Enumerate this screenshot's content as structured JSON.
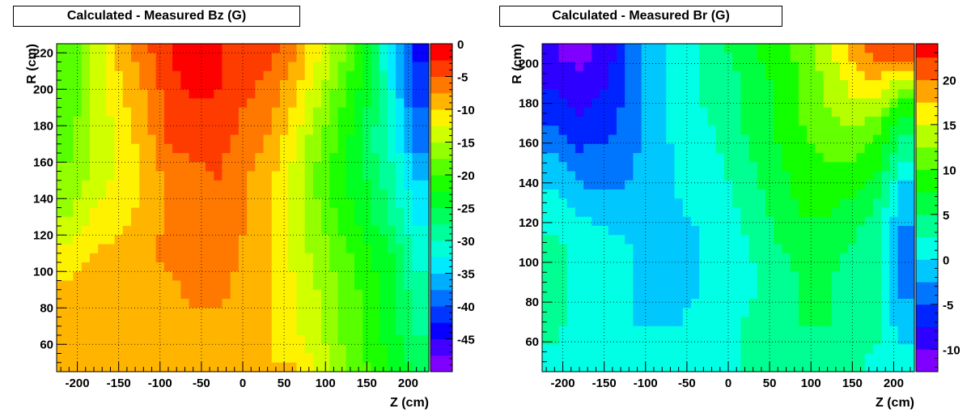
{
  "charts": [
    {
      "title": "Calculated - Measured Bz (G)",
      "xlabel": "Z (cm)",
      "ylabel": "R (cm)",
      "xticks": [
        "-200",
        "-150",
        "-100",
        "-50",
        "0",
        "50",
        "100",
        "150",
        "200"
      ],
      "yticks": [
        "60",
        "80",
        "100",
        "120",
        "140",
        "160",
        "180",
        "200",
        "220"
      ],
      "zticks": [
        "0",
        "-5",
        "-10",
        "-15",
        "-20",
        "-25",
        "-30",
        "-35",
        "-40",
        "-45"
      ]
    },
    {
      "title": "Calculated - Measured Br (G)",
      "xlabel": "Z (cm)",
      "ylabel": "R (cm)",
      "xticks": [
        "-200",
        "-150",
        "-100",
        "-50",
        "0",
        "50",
        "100",
        "150",
        "200"
      ],
      "yticks": [
        "60",
        "80",
        "100",
        "120",
        "140",
        "160",
        "180",
        "200"
      ],
      "zticks": [
        "20",
        "15",
        "10",
        "5",
        "0",
        "-5",
        "-10"
      ]
    }
  ],
  "chart_data": [
    {
      "type": "heatmap",
      "title": "Calculated - Measured Bz (G)",
      "xlabel": "Z (cm)",
      "ylabel": "R (cm)",
      "xlim": [
        -225,
        225
      ],
      "ylim": [
        45,
        225
      ],
      "zlim": [
        -50,
        0
      ],
      "z_step": 2.5,
      "colorbar_ticks": [
        0,
        -5,
        -10,
        -15,
        -20,
        -25,
        -30,
        -35,
        -40,
        -45
      ],
      "x": [
        -210,
        -180,
        -150,
        -120,
        -90,
        -60,
        -30,
        0,
        30,
        60,
        90,
        120,
        150,
        180,
        210
      ],
      "y": [
        50,
        70,
        90,
        110,
        130,
        150,
        170,
        190,
        210,
        220
      ],
      "z": [
        [
          -9,
          -8,
          -8,
          -8,
          -8,
          -8,
          -8,
          -8,
          -10,
          -10,
          -13,
          -17,
          -20,
          -23,
          -26
        ],
        [
          -9,
          -8,
          -8,
          -8,
          -8,
          -8,
          -8,
          -9,
          -10,
          -12,
          -15,
          -18,
          -21,
          -24,
          -28
        ],
        [
          -9,
          -8,
          -8,
          -8,
          -8,
          -7,
          -7,
          -8,
          -10,
          -12,
          -15,
          -18,
          -21,
          -24,
          -29
        ],
        [
          -12,
          -10,
          -9,
          -8,
          -7,
          -6,
          -6,
          -8,
          -10,
          -13,
          -16,
          -19,
          -22,
          -25,
          -31
        ],
        [
          -15,
          -12,
          -11,
          -9,
          -7,
          -6,
          -6,
          -7,
          -9,
          -13,
          -17,
          -21,
          -24,
          -28,
          -33
        ],
        [
          -17,
          -14,
          -12,
          -10,
          -7,
          -6,
          -5,
          -7,
          -9,
          -13,
          -18,
          -22,
          -25,
          -29,
          -35
        ],
        [
          -18,
          -15,
          -12,
          -9,
          -5,
          -4,
          -4,
          -6,
          -8,
          -12,
          -17,
          -21,
          -26,
          -31,
          -38
        ],
        [
          -19,
          -15,
          -11,
          -8,
          -5,
          -3,
          -3,
          -5,
          -6,
          -10,
          -15,
          -20,
          -25,
          -32,
          -40
        ],
        [
          -20,
          -15,
          -10,
          -7,
          -3,
          -1,
          -2,
          -4,
          -5,
          -8,
          -13,
          -18,
          -24,
          -33,
          -42
        ],
        [
          -20,
          -15,
          -9,
          -6,
          -3,
          -1,
          -2,
          -4,
          -4,
          -7,
          -12,
          -17,
          -23,
          -34,
          -43
        ]
      ]
    },
    {
      "type": "heatmap",
      "title": "Calculated - Measured Br (G)",
      "xlabel": "Z (cm)",
      "ylabel": "R (cm)",
      "xlim": [
        -225,
        225
      ],
      "ylim": [
        45,
        210
      ],
      "zlim": [
        -12.5,
        24
      ],
      "z_step": 2.5,
      "colorbar_ticks": [
        20,
        15,
        10,
        5,
        0,
        -5,
        -10
      ],
      "x": [
        -210,
        -180,
        -150,
        -120,
        -90,
        -60,
        -30,
        0,
        30,
        60,
        90,
        120,
        150,
        180,
        210
      ],
      "y": [
        50,
        70,
        90,
        110,
        130,
        150,
        170,
        190,
        205
      ],
      "z": [
        [
          2,
          1,
          0,
          0,
          0,
          0,
          1,
          2,
          3,
          4,
          4,
          4,
          3,
          2,
          1
        ],
        [
          3,
          2,
          1,
          0,
          0,
          0,
          1,
          2,
          3,
          4,
          5,
          5,
          4,
          3,
          -2
        ],
        [
          3,
          2,
          1,
          0,
          -1,
          -1,
          0,
          1,
          2,
          4,
          5,
          5,
          4,
          3,
          -3
        ],
        [
          3,
          2,
          1,
          0,
          -1,
          -1,
          0,
          1,
          3,
          5,
          6,
          6,
          5,
          3,
          -3
        ],
        [
          1,
          -1,
          -2,
          -2,
          -1,
          0,
          1,
          2,
          4,
          6,
          8,
          8,
          7,
          5,
          -2
        ],
        [
          -2,
          -4,
          -4,
          -3,
          -1,
          0,
          1,
          3,
          5,
          7,
          9,
          10,
          10,
          8,
          2
        ],
        [
          -5,
          -7,
          -6,
          -4,
          -1,
          1,
          2,
          4,
          6,
          8,
          10,
          12,
          13,
          11,
          6
        ],
        [
          -8,
          -9,
          -8,
          -4,
          -1,
          1,
          3,
          4,
          6,
          8,
          10,
          13,
          16,
          17,
          13
        ],
        [
          -10,
          -11,
          -9,
          -5,
          -1,
          1,
          3,
          5,
          7,
          9,
          11,
          14,
          18,
          21,
          22
        ]
      ]
    }
  ]
}
